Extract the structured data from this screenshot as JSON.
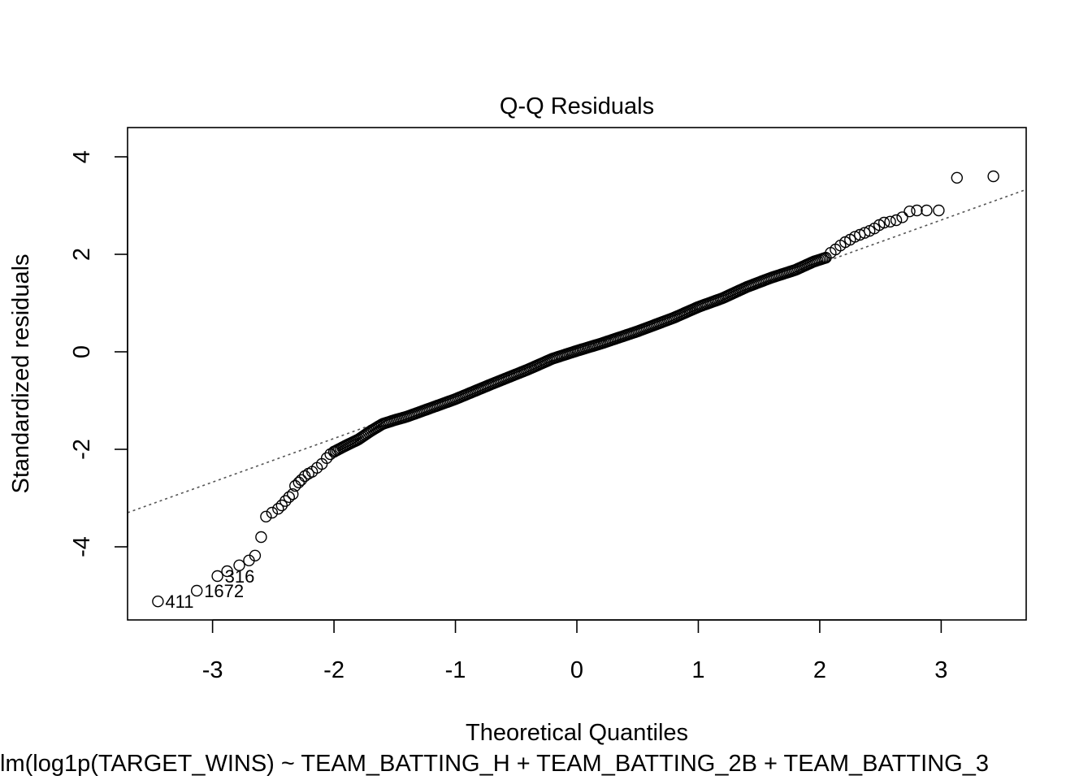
{
  "chart_data": {
    "type": "scatter",
    "title": "Q-Q Residuals",
    "xlabel": "Theoretical Quantiles",
    "ylabel": "Standardized residuals",
    "subtitle": "lm(log1p(TARGET_WINS) ~ TEAM_BATTING_H + TEAM_BATTING_2B + TEAM_BATTING_3",
    "xlim": [
      -3.7,
      3.7
    ],
    "ylim": [
      -5.5,
      4.6
    ],
    "xticks": [
      -3,
      -2,
      -1,
      0,
      1,
      2,
      3
    ],
    "yticks": [
      -4,
      -2,
      0,
      2,
      4
    ],
    "reference_line": {
      "style": "dotted",
      "x1": -3.7,
      "y1": -3.3,
      "x2": 3.7,
      "y2": 3.33
    },
    "point_style": "open-circle",
    "grid": false,
    "labeled_points": [
      {
        "label": "411",
        "x": -3.45,
        "y": -5.12
      },
      {
        "label": "1672",
        "x": -3.13,
        "y": -4.9
      },
      {
        "label": "316",
        "x": -2.96,
        "y": -4.6
      }
    ],
    "tail_low": [
      [
        -2.88,
        -4.5
      ],
      [
        -2.78,
        -4.38
      ],
      [
        -2.7,
        -4.28
      ],
      [
        -2.65,
        -4.18
      ],
      [
        -2.6,
        -3.8
      ],
      [
        -2.56,
        -3.38
      ],
      [
        -2.51,
        -3.3
      ],
      [
        -2.46,
        -3.22
      ],
      [
        -2.43,
        -3.15
      ],
      [
        -2.4,
        -3.06
      ],
      [
        -2.37,
        -2.98
      ],
      [
        -2.34,
        -2.92
      ],
      [
        -2.32,
        -2.75
      ],
      [
        -2.29,
        -2.68
      ],
      [
        -2.27,
        -2.63
      ],
      [
        -2.24,
        -2.55
      ],
      [
        -2.21,
        -2.5
      ],
      [
        -2.18,
        -2.46
      ],
      [
        -2.14,
        -2.38
      ],
      [
        -2.1,
        -2.3
      ],
      [
        -2.06,
        -2.18
      ],
      [
        -2.03,
        -2.1
      ],
      [
        -2.0,
        -2.05
      ]
    ],
    "tail_high": [
      [
        2.05,
        1.93
      ],
      [
        2.09,
        2.03
      ],
      [
        2.13,
        2.1
      ],
      [
        2.17,
        2.18
      ],
      [
        2.21,
        2.25
      ],
      [
        2.25,
        2.3
      ],
      [
        2.29,
        2.36
      ],
      [
        2.33,
        2.4
      ],
      [
        2.37,
        2.44
      ],
      [
        2.41,
        2.48
      ],
      [
        2.45,
        2.53
      ],
      [
        2.49,
        2.6
      ],
      [
        2.53,
        2.65
      ],
      [
        2.58,
        2.67
      ],
      [
        2.63,
        2.7
      ],
      [
        2.68,
        2.76
      ],
      [
        2.74,
        2.88
      ],
      [
        2.8,
        2.9
      ],
      [
        2.88,
        2.9
      ],
      [
        2.98,
        2.9
      ],
      [
        3.13,
        3.57
      ],
      [
        3.43,
        3.6
      ]
    ],
    "body_knots": [
      [
        -2.0,
        -2.05
      ],
      [
        -1.9,
        -1.92
      ],
      [
        -1.8,
        -1.8
      ],
      [
        -1.7,
        -1.63
      ],
      [
        -1.6,
        -1.48
      ],
      [
        -1.5,
        -1.4
      ],
      [
        -1.4,
        -1.33
      ],
      [
        -1.2,
        -1.15
      ],
      [
        -1.0,
        -0.97
      ],
      [
        -0.7,
        -0.66
      ],
      [
        -0.4,
        -0.36
      ],
      [
        -0.2,
        -0.14
      ],
      [
        0.0,
        0.02
      ],
      [
        0.2,
        0.17
      ],
      [
        0.5,
        0.42
      ],
      [
        0.8,
        0.7
      ],
      [
        1.0,
        0.92
      ],
      [
        1.2,
        1.1
      ],
      [
        1.4,
        1.33
      ],
      [
        1.6,
        1.52
      ],
      [
        1.8,
        1.68
      ],
      [
        1.95,
        1.85
      ],
      [
        2.05,
        1.93
      ]
    ],
    "body_point_count": 300
  }
}
